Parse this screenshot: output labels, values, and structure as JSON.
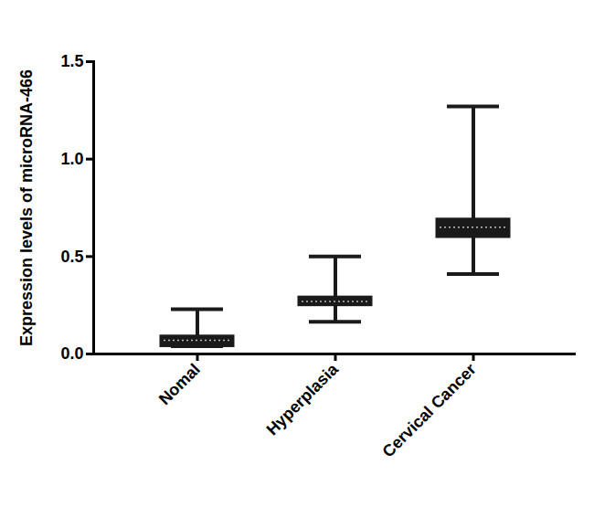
{
  "chart_data": {
    "type": "box",
    "ylabel": "Expression levels of microRNA-466",
    "categories": [
      "Nomal",
      "Hyperplasia",
      "Cervical Cancer"
    ],
    "min": [
      0.04,
      0.165,
      0.41
    ],
    "q1": [
      0.04,
      0.25,
      0.6
    ],
    "median": [
      0.07,
      0.27,
      0.65
    ],
    "q3": [
      0.09,
      0.29,
      0.69
    ],
    "max": [
      0.23,
      0.5,
      1.27
    ],
    "color": "#1a1a1a",
    "ylim": [
      0,
      1.5
    ],
    "yticks": [
      {
        "value": 0,
        "label": "0.0"
      },
      {
        "value": 0.5,
        "label": "0.5"
      },
      {
        "value": 1,
        "label": "1.0"
      },
      {
        "value": 1.5,
        "label": "1.5"
      }
    ],
    "grid": false
  }
}
